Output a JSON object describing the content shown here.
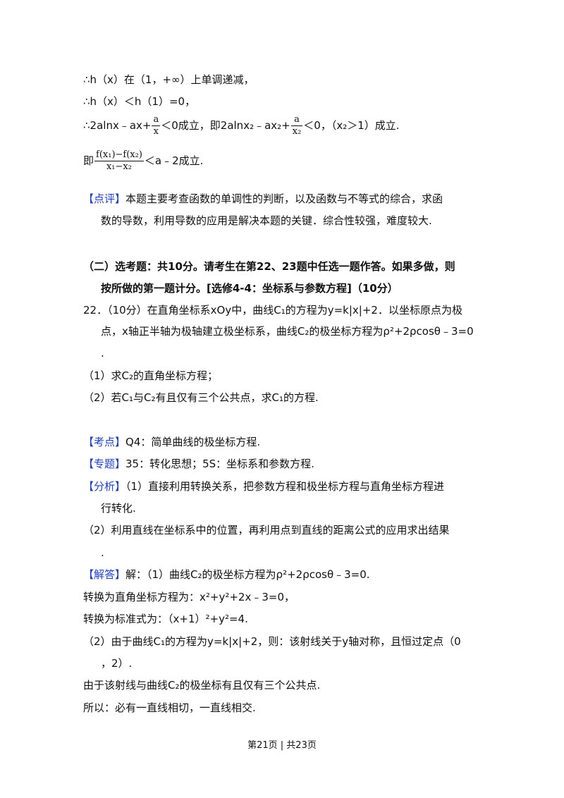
{
  "lines": {
    "l1": "∴h（x）在（1，+∞）上单调递减，",
    "l2": "∴h（x）＜h（1）=0，",
    "l3a": "∴2alnx﹣ax+",
    "l3_frac1_num": "a",
    "l3_frac1_den": "x",
    "l3b": "＜0成立，即2alnx₂﹣ax₂+",
    "l3_frac2_num": "a",
    "l3_frac2_den": "x₂",
    "l3c": "＜0，（x₂＞1）成立.",
    "l4a": "即",
    "l4_frac_num": "f(x₁)−f(x₂)",
    "l4_frac_den": "x₁−x₂",
    "l4b": "＜a﹣2成立.",
    "comment_tag": "【点评】",
    "comment_1": "本题主要考查函数的单调性的判断，以及函数与不等式的综合，求函",
    "comment_2": "数的导数，利用导数的应用是解决本题的关键．综合性较强，难度较大.",
    "section_1": "（二）选考题：共10分。请考生在第22、23题中任选一题作答。如果多做，则",
    "section_2": "按所做的第一题计分。[选修4-4：坐标系与参数方程]（10分）",
    "q22_1": "22．（10分）在直角坐标系xOy中，曲线C₁的方程为y=k|x|+2．以坐标原点为极",
    "q22_2": "点，x轴正半轴为极轴建立极坐标系，曲线C₂的极坐标方程为ρ²+2ρcosθ﹣3=0",
    "q22_3": ".",
    "q22_p1": "（1）求C₂的直角坐标方程；",
    "q22_p2": "（2）若C₁与C₂有且仅有三个公共点，求C₁的方程.",
    "kaodian_tag": "【考点】",
    "kaodian": "Q4：简单曲线的极坐标方程.",
    "zhuanti_tag": "【专题】",
    "zhuanti": "35：转化思想；5S：坐标系和参数方程.",
    "fenxi_tag": "【分析】",
    "fenxi_1": "（1）直接利用转换关系，把参数方程和极坐标方程与直角坐标方程进",
    "fenxi_2": "行转化.",
    "fenxi_3": "（2）利用直线在坐标系中的位置，再利用点到直线的距离公式的应用求出结果",
    "fenxi_4": ".",
    "jieda_tag": "【解答】",
    "jieda_1": "解：（1）曲线C₂的极坐标方程为ρ²+2ρcosθ﹣3=0.",
    "jieda_2": "转换为直角坐标方程为：x²+y²+2x﹣3=0，",
    "jieda_3": "转换为标准式为：（x+1）²+y²=4.",
    "jieda_4": "（2）由于曲线C₁的方程为y=k|x|+2，则：该射线关于y轴对称，且恒过定点（0",
    "jieda_5": "，2）.",
    "jieda_6": "由于该射线与曲线C₂的极坐标有且仅有三个公共点.",
    "jieda_7": "所以：必有一直线相切，一直线相交."
  },
  "footer": "第21页 | 共23页",
  "colors": {
    "tag": "#1f3fbf",
    "text": "#111111"
  }
}
